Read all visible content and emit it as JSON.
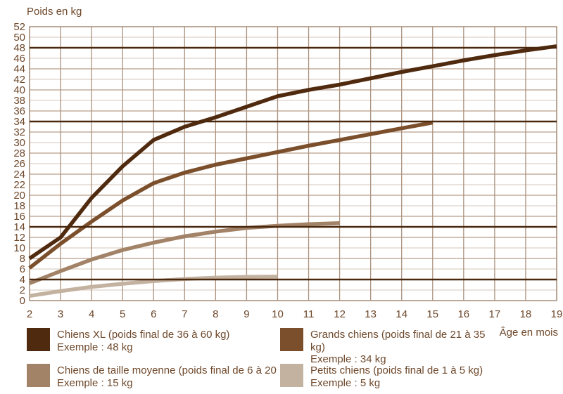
{
  "chart": {
    "y_axis_title": "Poids en kg",
    "x_axis_title": "Âge en mois"
  },
  "colors": {
    "text": "#6e482b",
    "grid_vertical": "#ac937f",
    "grid_horizontal_light": "#ddd1c7",
    "grid_horizontal_dark": "#b69d8a",
    "plot_border": "#ac937f",
    "reference_line": "#4a280e"
  },
  "chart_data": {
    "type": "line",
    "title": "",
    "xlabel": "Âge en mois",
    "ylabel": "Poids en kg",
    "xlim": [
      2,
      19
    ],
    "ylim": [
      0,
      52
    ],
    "x_ticks": [
      2,
      3,
      4,
      5,
      6,
      7,
      8,
      9,
      10,
      11,
      12,
      13,
      14,
      15,
      16,
      17,
      18,
      19
    ],
    "y_ticks": [
      0,
      2,
      4,
      6,
      8,
      10,
      12,
      14,
      16,
      18,
      20,
      22,
      24,
      26,
      28,
      30,
      32,
      34,
      36,
      38,
      40,
      42,
      44,
      46,
      48,
      50,
      52
    ],
    "grid": true,
    "legend_position": "bottom",
    "reference_lines_kg": [
      48,
      34,
      14,
      4
    ],
    "series": [
      {
        "name": "Chiens XL",
        "color": "#4f2a0f",
        "points": [
          [
            2,
            8
          ],
          [
            3,
            12
          ],
          [
            4,
            19.5
          ],
          [
            5,
            25.5
          ],
          [
            6,
            30.5
          ],
          [
            7,
            33
          ],
          [
            8,
            34.8
          ],
          [
            9,
            36.8
          ],
          [
            10,
            38.8
          ],
          [
            11,
            40
          ],
          [
            12,
            41
          ],
          [
            13,
            42.2
          ],
          [
            14,
            43.4
          ],
          [
            15,
            44.5
          ],
          [
            16,
            45.6
          ],
          [
            17,
            46.6
          ],
          [
            18,
            47.5
          ],
          [
            19,
            48.3
          ]
        ]
      },
      {
        "name": "Grands chiens",
        "color": "#7b4f2b",
        "points": [
          [
            2,
            6.2
          ],
          [
            3,
            10.8
          ],
          [
            4,
            15
          ],
          [
            5,
            19
          ],
          [
            6,
            22.3
          ],
          [
            7,
            24.3
          ],
          [
            8,
            25.8
          ],
          [
            9,
            27
          ],
          [
            10,
            28.2
          ],
          [
            11,
            29.4
          ],
          [
            12,
            30.5
          ],
          [
            13,
            31.6
          ],
          [
            14,
            32.7
          ],
          [
            15,
            33.8
          ]
        ]
      },
      {
        "name": "Chiens de taille moyenne",
        "color": "#a28367",
        "points": [
          [
            2,
            3.3
          ],
          [
            3,
            5.6
          ],
          [
            4,
            7.8
          ],
          [
            5,
            9.6
          ],
          [
            6,
            11
          ],
          [
            7,
            12.2
          ],
          [
            8,
            13.1
          ],
          [
            9,
            13.8
          ],
          [
            10,
            14.2
          ],
          [
            11,
            14.5
          ],
          [
            12,
            14.7
          ]
        ]
      },
      {
        "name": "Petits chiens",
        "color": "#c4b2a0",
        "points": [
          [
            2,
            0.9
          ],
          [
            3,
            1.8
          ],
          [
            4,
            2.6
          ],
          [
            5,
            3.2
          ],
          [
            6,
            3.7
          ],
          [
            7,
            4.1
          ],
          [
            8,
            4.35
          ],
          [
            9,
            4.5
          ],
          [
            10,
            4.55
          ]
        ]
      }
    ]
  },
  "legend": {
    "items": [
      {
        "label": "Chiens XL (poids final de 36 à 60 kg)",
        "example": "Exemple : 48 kg",
        "color": "#4f2a0f"
      },
      {
        "label": "Grands chiens (poids final de 21 à 35 kg)",
        "example": "Exemple : 34 kg",
        "color": "#7b4f2b"
      },
      {
        "label": "Chiens de taille moyenne (poids final de 6 à 20 kg)",
        "example": "Exemple : 15 kg",
        "color": "#a28367"
      },
      {
        "label": "Petits chiens (poids final de 1 à 5 kg)",
        "example": "Exemple : 5 kg",
        "color": "#c4b2a0"
      }
    ]
  }
}
